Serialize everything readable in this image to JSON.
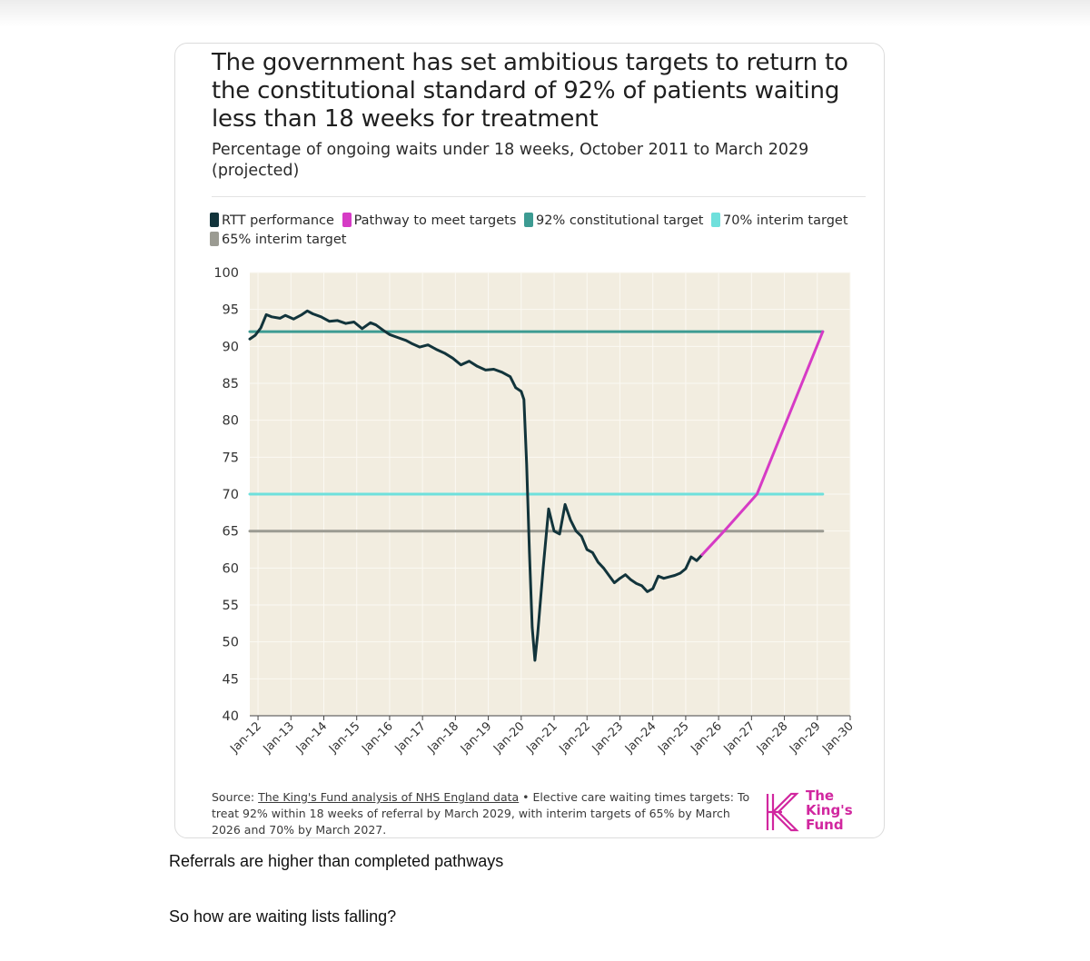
{
  "title": "The government has set ambitious targets to return to the constitutional standard of 92% of patients waiting less than 18 weeks for treatment",
  "subtitle": "Percentage of ongoing waits under 18 weeks, October 2011 to March 2029 (projected)",
  "legend": [
    {
      "label": "RTT performance",
      "color": "#12343b"
    },
    {
      "label": "Pathway to meet targets",
      "color": "#d63bc5"
    },
    {
      "label": "92% constitutional target",
      "color": "#3d9b92"
    },
    {
      "label": "70% interim target",
      "color": "#6fe0dc"
    },
    {
      "label": "65% interim target",
      "color": "#9b9b92"
    }
  ],
  "colors": {
    "plot_background": "#f2ede0",
    "gridline": "#fbf9f3",
    "brand": "#d1279f"
  },
  "source": {
    "prefix": "Source: ",
    "link_text": "The King's Fund analysis of NHS England data",
    "rest": " • Elective care waiting times targets: To treat 92% within 18 weeks of referral by March 2029, with interim targets of 65% by March 2026 and 70% by March 2027."
  },
  "logo": {
    "icon": "kings-fund-k-logo",
    "lines": [
      "The",
      "King's",
      "Fund"
    ]
  },
  "body_texts": [
    "Referrals are higher than completed pathways",
    "So how are waiting lists falling?"
  ],
  "chart_data": {
    "type": "line",
    "xlabel": "",
    "ylabel": "",
    "x_ticks": [
      "Jan-12",
      "Jan-13",
      "Jan-14",
      "Jan-15",
      "Jan-16",
      "Jan-17",
      "Jan-18",
      "Jan-19",
      "Jan-20",
      "Jan-21",
      "Jan-22",
      "Jan-23",
      "Jan-24",
      "Jan-25",
      "Jan-26",
      "Jan-27",
      "Jan-28",
      "Jan-29",
      "Jan-30"
    ],
    "x_range": [
      2011.75,
      2030.0
    ],
    "y_ticks": [
      40,
      45,
      50,
      55,
      60,
      65,
      70,
      75,
      80,
      85,
      90,
      95,
      100
    ],
    "ylim": [
      40,
      100
    ],
    "grid": true,
    "legend_position": "top",
    "series": [
      {
        "name": "RTT performance",
        "color": "#12343b",
        "points": [
          [
            "2011-10",
            91.0
          ],
          [
            "2011-12",
            91.5
          ],
          [
            "2012-02",
            92.5
          ],
          [
            "2012-04",
            94.3
          ],
          [
            "2012-06",
            94.0
          ],
          [
            "2012-09",
            93.8
          ],
          [
            "2012-11",
            94.2
          ],
          [
            "2013-02",
            93.7
          ],
          [
            "2013-05",
            94.3
          ],
          [
            "2013-07",
            94.8
          ],
          [
            "2013-09",
            94.4
          ],
          [
            "2013-12",
            94.0
          ],
          [
            "2014-03",
            93.4
          ],
          [
            "2014-06",
            93.5
          ],
          [
            "2014-09",
            93.1
          ],
          [
            "2014-12",
            93.3
          ],
          [
            "2015-03",
            92.4
          ],
          [
            "2015-06",
            93.2
          ],
          [
            "2015-08",
            92.9
          ],
          [
            "2015-11",
            92.1
          ],
          [
            "2016-01",
            91.6
          ],
          [
            "2016-04",
            91.2
          ],
          [
            "2016-07",
            90.8
          ],
          [
            "2016-09",
            90.4
          ],
          [
            "2016-12",
            89.9
          ],
          [
            "2017-03",
            90.2
          ],
          [
            "2017-06",
            89.6
          ],
          [
            "2017-09",
            89.1
          ],
          [
            "2017-12",
            88.4
          ],
          [
            "2018-03",
            87.5
          ],
          [
            "2018-06",
            88.0
          ],
          [
            "2018-09",
            87.3
          ],
          [
            "2018-12",
            86.8
          ],
          [
            "2019-03",
            86.9
          ],
          [
            "2019-06",
            86.5
          ],
          [
            "2019-09",
            85.9
          ],
          [
            "2019-11",
            84.4
          ],
          [
            "2020-01",
            83.9
          ],
          [
            "2020-02",
            82.8
          ],
          [
            "2020-03",
            74.0
          ],
          [
            "2020-04",
            62.0
          ],
          [
            "2020-05",
            52.0
          ],
          [
            "2020-06",
            47.5
          ],
          [
            "2020-07",
            51.0
          ],
          [
            "2020-09",
            60.0
          ],
          [
            "2020-11",
            68.0
          ],
          [
            "2021-01",
            65.0
          ],
          [
            "2021-03",
            64.6
          ],
          [
            "2021-05",
            68.6
          ],
          [
            "2021-07",
            66.5
          ],
          [
            "2021-09",
            65.0
          ],
          [
            "2021-11",
            64.3
          ],
          [
            "2022-01",
            62.5
          ],
          [
            "2022-03",
            62.1
          ],
          [
            "2022-05",
            60.8
          ],
          [
            "2022-07",
            60.0
          ],
          [
            "2022-09",
            59.0
          ],
          [
            "2022-11",
            58.0
          ],
          [
            "2023-01",
            58.6
          ],
          [
            "2023-03",
            59.1
          ],
          [
            "2023-05",
            58.4
          ],
          [
            "2023-07",
            57.9
          ],
          [
            "2023-09",
            57.6
          ],
          [
            "2023-11",
            56.8
          ],
          [
            "2024-01",
            57.2
          ],
          [
            "2024-03",
            58.9
          ],
          [
            "2024-05",
            58.6
          ],
          [
            "2024-07",
            58.8
          ],
          [
            "2024-09",
            59.0
          ],
          [
            "2024-11",
            59.3
          ],
          [
            "2025-01",
            59.9
          ],
          [
            "2025-03",
            61.5
          ],
          [
            "2025-05",
            61.0
          ],
          [
            "2025-07",
            61.8
          ]
        ]
      },
      {
        "name": "Pathway to meet targets",
        "color": "#d63bc5",
        "points": [
          [
            "2025-07",
            61.8
          ],
          [
            "2026-03",
            65.0
          ],
          [
            "2027-03",
            70.0
          ],
          [
            "2029-03",
            92.0
          ]
        ]
      },
      {
        "name": "92% constitutional target",
        "color": "#3d9b92",
        "points": [
          [
            "2011-10",
            92
          ],
          [
            "2029-03",
            92
          ]
        ]
      },
      {
        "name": "70% interim target",
        "color": "#6fe0dc",
        "points": [
          [
            "2011-10",
            70
          ],
          [
            "2029-03",
            70
          ]
        ]
      },
      {
        "name": "65% interim target",
        "color": "#9b9b92",
        "points": [
          [
            "2011-10",
            65
          ],
          [
            "2029-03",
            65
          ]
        ]
      }
    ]
  }
}
